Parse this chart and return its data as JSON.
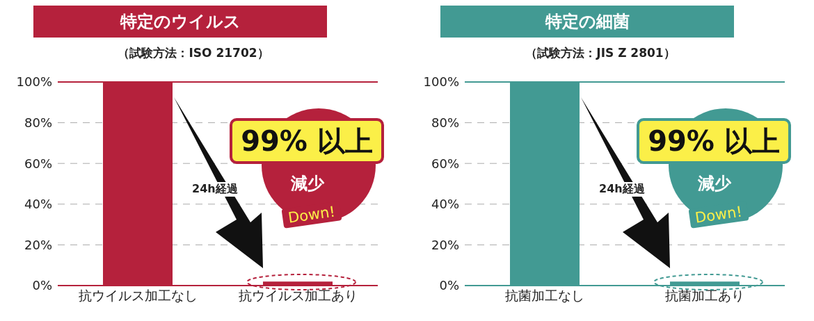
{
  "chart_data": [
    {
      "type": "bar",
      "title": "特定のウイルス",
      "subtitle": "（試験方法：ISO 21702）",
      "categories": [
        "抗ウイルス加工なし",
        "抗ウイルス加工あり"
      ],
      "series": [
        {
          "color": "#b5213c",
          "values": [
            100,
            2
          ]
        }
      ],
      "ylim": [
        0,
        100
      ],
      "yticks": [
        {
          "value": 0,
          "label": "0%"
        },
        {
          "value": 20,
          "label": "20%"
        },
        {
          "value": 40,
          "label": "40%"
        },
        {
          "value": 60,
          "label": "60%"
        },
        {
          "value": 80,
          "label": "80%"
        },
        {
          "value": 100,
          "label": "100%"
        }
      ],
      "grid": "y",
      "ref_lines": [
        {
          "axis": "y",
          "value": 100,
          "color": "#b5213c"
        }
      ],
      "legend": false,
      "annotations": [
        "24h経過",
        "99% 以上",
        "減少",
        "Down!"
      ]
    },
    {
      "type": "bar",
      "title": "特定の細菌",
      "subtitle": "（試験方法：JIS Z 2801）",
      "categories": [
        "抗菌加工なし",
        "抗菌加工あり"
      ],
      "series": [
        {
          "color": "#429a93",
          "values": [
            100,
            2
          ]
        }
      ],
      "ylim": [
        0,
        100
      ],
      "yticks": [
        {
          "value": 0,
          "label": "0%"
        },
        {
          "value": 20,
          "label": "20%"
        },
        {
          "value": 40,
          "label": "40%"
        },
        {
          "value": 60,
          "label": "60%"
        },
        {
          "value": 80,
          "label": "80%"
        },
        {
          "value": 100,
          "label": "100%"
        }
      ],
      "grid": "y",
      "ref_lines": [
        {
          "axis": "y",
          "value": 100,
          "color": "#429a93"
        }
      ],
      "legend": false,
      "annotations": [
        "24h経過",
        "99% 以上",
        "減少",
        "Down!"
      ]
    }
  ]
}
